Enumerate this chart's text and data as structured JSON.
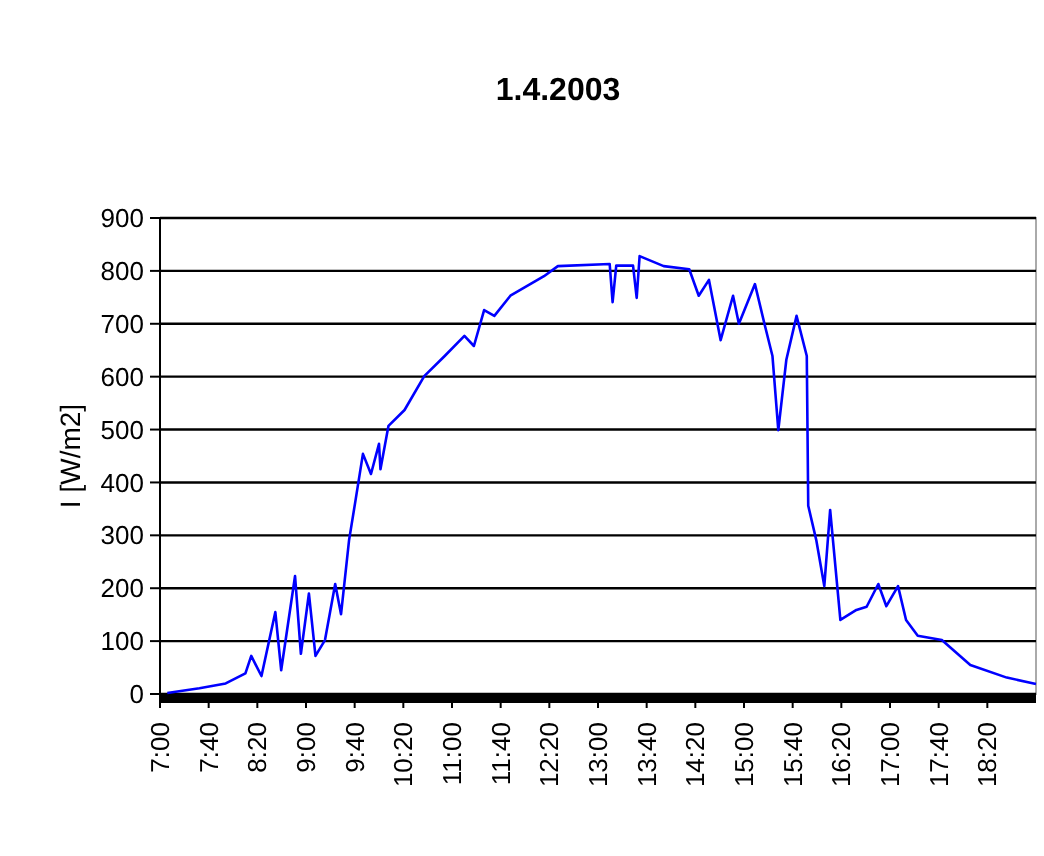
{
  "chart_data": {
    "type": "line",
    "title": "1.4.2003",
    "ylabel": "I [W/m2]",
    "xlim": [
      7,
      19
    ],
    "ylim": [
      0,
      900
    ],
    "yticks": [
      0,
      100,
      200,
      300,
      400,
      500,
      600,
      700,
      800,
      900
    ],
    "xticks": [
      {
        "value": 7,
        "label": "7:00"
      },
      {
        "value": 7.6667,
        "label": "7:40"
      },
      {
        "value": 8.3333,
        "label": "8:20"
      },
      {
        "value": 9,
        "label": "9:00"
      },
      {
        "value": 9.6667,
        "label": "9:40"
      },
      {
        "value": 10.3333,
        "label": "10:20"
      },
      {
        "value": 11,
        "label": "11:00"
      },
      {
        "value": 11.6667,
        "label": "11:40"
      },
      {
        "value": 12.3333,
        "label": "12:20"
      },
      {
        "value": 13,
        "label": "13:00"
      },
      {
        "value": 13.6667,
        "label": "13:40"
      },
      {
        "value": 14.3333,
        "label": "14:20"
      },
      {
        "value": 15,
        "label": "15:00"
      },
      {
        "value": 15.6667,
        "label": "15:40"
      },
      {
        "value": 16.3333,
        "label": "16:20"
      },
      {
        "value": 17,
        "label": "17:00"
      },
      {
        "value": 17.6667,
        "label": "17:40"
      },
      {
        "value": 18.3333,
        "label": "18:20"
      }
    ],
    "grid": "y",
    "marker": "none",
    "line_style": "solid",
    "series": [
      {
        "color": "#0000ff",
        "x": [
          7.1,
          7.54,
          7.9,
          8.17,
          8.25,
          8.39,
          8.58,
          8.66,
          8.85,
          8.93,
          9.04,
          9.13,
          9.26,
          9.4,
          9.48,
          9.59,
          9.67,
          9.78,
          9.89,
          10.0,
          10.02,
          10.13,
          10.35,
          10.62,
          10.9,
          11.17,
          11.3,
          11.44,
          11.58,
          11.8,
          12.26,
          12.45,
          13.16,
          13.2,
          13.25,
          13.48,
          13.53,
          13.57,
          13.9,
          14.25,
          14.38,
          14.52,
          14.68,
          14.85,
          14.93,
          15.15,
          15.28,
          15.39,
          15.47,
          15.58,
          15.72,
          15.86,
          15.88,
          15.99,
          16.1,
          16.18,
          16.32,
          16.54,
          16.68,
          16.84,
          16.95,
          17.11,
          17.22,
          17.38,
          17.71,
          18.1,
          18.6,
          19.0
        ],
        "values": [
          2,
          11,
          20,
          39,
          72,
          34,
          155,
          45,
          223,
          76,
          190,
          72,
          102,
          208,
          151,
          291,
          359,
          454,
          416,
          473,
          425,
          507,
          537,
          601,
          639,
          677,
          658,
          726,
          715,
          753,
          790,
          809,
          813,
          741,
          810,
          810,
          749,
          828,
          809,
          803,
          753,
          783,
          669,
          753,
          700,
          775,
          700,
          639,
          499,
          632,
          715,
          639,
          356,
          291,
          204,
          348,
          140,
          159,
          165,
          208,
          166,
          204,
          140,
          110,
          102,
          55,
          31,
          19
        ]
      }
    ]
  }
}
